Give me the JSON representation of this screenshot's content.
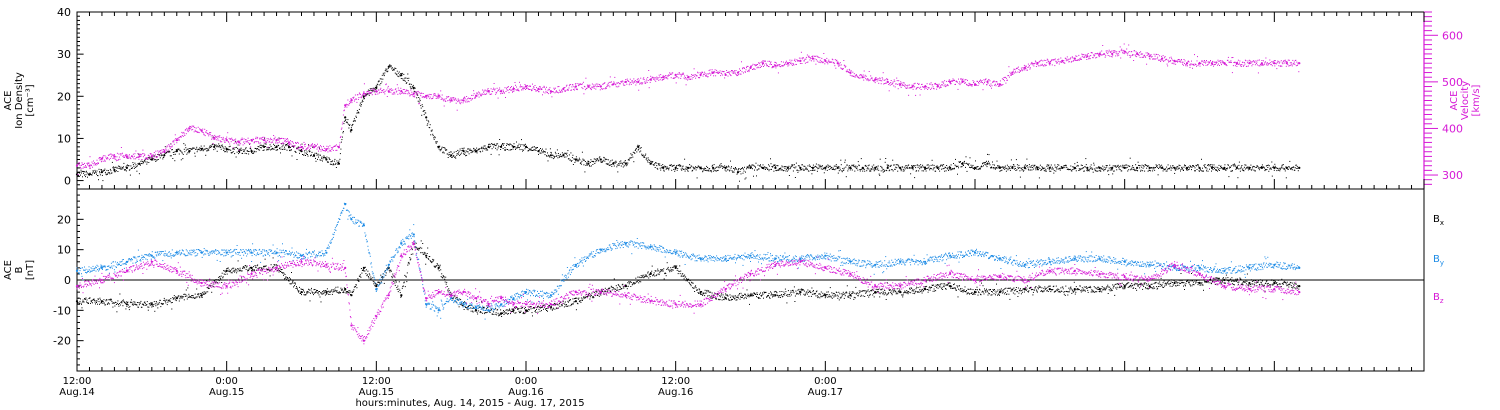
{
  "colors": {
    "black": "#000000",
    "magenta": "#d619d6",
    "blue": "#1e8ce6",
    "axis": "#000000"
  },
  "chart_data": [
    {
      "type": "scatter",
      "panel": "top",
      "ylabel_lines": [
        "ACE",
        "Ion Density",
        "[cm⁻³]"
      ],
      "y2label_lines": [
        "ACE",
        "Velocity",
        "[km/s]"
      ],
      "ylim": [
        -2,
        40
      ],
      "y2lim": [
        270,
        650
      ],
      "yticks": [
        "0",
        "10",
        "20",
        "30",
        "40"
      ],
      "y2ticks": [
        "300",
        "400",
        "500",
        "600"
      ],
      "series": [
        {
          "axis": "left",
          "color": "black",
          "x": [
            0,
            1,
            2,
            3,
            4,
            5,
            6,
            7,
            8,
            9,
            10,
            11,
            12,
            13,
            14,
            15,
            16,
            17,
            18,
            19,
            20,
            21,
            21.5,
            22,
            23,
            24,
            25,
            26,
            27,
            28,
            29,
            30,
            31,
            32,
            33,
            34,
            35,
            36,
            37,
            38,
            39,
            40,
            41,
            42,
            43,
            44,
            45,
            46,
            47,
            48,
            49,
            50,
            51,
            52,
            53,
            54,
            55,
            56,
            57,
            58,
            59,
            60,
            61,
            62,
            63,
            64,
            65,
            66,
            67,
            68,
            69,
            70,
            71,
            72,
            73,
            74,
            75,
            76,
            77,
            78,
            79,
            80,
            81,
            82,
            83,
            84,
            85,
            86,
            87,
            88,
            89,
            90,
            91,
            92,
            93,
            94,
            95,
            96,
            97,
            98
          ],
          "y": [
            1.5,
            1.5,
            2,
            2.5,
            3,
            4,
            5,
            6,
            7,
            7,
            7.5,
            8,
            7.5,
            7,
            7,
            8,
            8,
            8,
            7,
            6,
            5,
            4,
            15,
            12,
            20,
            22,
            27,
            25,
            22,
            15,
            8,
            6,
            7,
            7,
            8,
            8,
            8,
            8,
            7,
            6,
            6,
            5,
            4,
            5,
            4,
            4,
            8,
            4,
            3,
            3,
            3,
            3,
            3,
            3,
            2,
            3,
            3,
            3,
            3,
            3,
            3,
            3,
            3,
            3,
            3,
            3,
            3,
            3,
            3,
            3,
            3,
            3,
            4,
            3,
            4,
            3,
            3,
            3,
            3,
            3,
            3,
            3,
            3,
            3,
            3,
            3,
            3,
            3,
            3,
            3,
            3,
            3,
            3,
            3,
            3,
            3,
            3,
            3,
            3,
            3
          ]
        },
        {
          "axis": "right",
          "color": "magenta",
          "x": [
            0,
            1,
            2,
            3,
            4,
            5,
            6,
            7,
            8,
            9,
            10,
            11,
            12,
            13,
            14,
            15,
            16,
            17,
            18,
            19,
            20,
            21,
            21.5,
            22,
            23,
            24,
            25,
            26,
            27,
            28,
            29,
            30,
            31,
            32,
            33,
            34,
            35,
            36,
            37,
            38,
            39,
            40,
            41,
            42,
            43,
            44,
            45,
            46,
            47,
            48,
            49,
            50,
            51,
            52,
            53,
            54,
            55,
            56,
            57,
            58,
            59,
            60,
            61,
            62,
            63,
            64,
            65,
            66,
            67,
            68,
            69,
            70,
            71,
            72,
            73,
            74,
            75,
            76,
            77,
            78,
            79,
            80,
            81,
            82,
            83,
            84,
            85,
            86,
            87,
            88,
            89,
            90,
            91,
            92,
            93,
            94,
            95,
            96,
            97,
            98
          ],
          "y": [
            320,
            320,
            335,
            340,
            340,
            340,
            340,
            350,
            375,
            400,
            395,
            380,
            375,
            370,
            375,
            375,
            375,
            370,
            360,
            360,
            355,
            360,
            450,
            460,
            475,
            480,
            480,
            480,
            475,
            470,
            470,
            460,
            460,
            470,
            480,
            480,
            485,
            490,
            485,
            480,
            485,
            490,
            490,
            490,
            495,
            500,
            500,
            505,
            510,
            515,
            510,
            515,
            520,
            515,
            520,
            530,
            540,
            535,
            540,
            545,
            550,
            545,
            540,
            520,
            510,
            505,
            500,
            495,
            490,
            490,
            490,
            500,
            500,
            495,
            500,
            495,
            520,
            530,
            540,
            540,
            545,
            550,
            555,
            560,
            560,
            565,
            560,
            555,
            550,
            545,
            540,
            540,
            540,
            540,
            540,
            540,
            540,
            540,
            540,
            540
          ]
        }
      ]
    },
    {
      "type": "scatter",
      "panel": "bottom",
      "ylabel_lines": [
        "ACE",
        "B",
        "[nT]"
      ],
      "ylim": [
        -30,
        30
      ],
      "yticks": [
        "-20",
        "-10",
        "0",
        "10",
        "20"
      ],
      "legend": [
        {
          "text": "B",
          "sub": "x",
          "color": "black"
        },
        {
          "text": "B",
          "sub": "y",
          "color": "blue"
        },
        {
          "text": "B",
          "sub": "z",
          "color": "magenta"
        }
      ],
      "series": [
        {
          "name": "Bx",
          "color": "black",
          "x": [
            0,
            2,
            4,
            6,
            8,
            10,
            12,
            14,
            16,
            18,
            20,
            21.5,
            22,
            23,
            24,
            25,
            26,
            27,
            28,
            29,
            30,
            31,
            32,
            33,
            34,
            35,
            36,
            38,
            40,
            42,
            44,
            46,
            48,
            50,
            52,
            54,
            56,
            58,
            60,
            62,
            64,
            66,
            68,
            70,
            72,
            74,
            76,
            78,
            80,
            82,
            84,
            86,
            88,
            90,
            92,
            94,
            96,
            98
          ],
          "y": [
            -7,
            -7,
            -8,
            -8,
            -6,
            -5,
            3,
            4,
            4,
            -4,
            -4,
            -3,
            -5,
            4,
            -2,
            4,
            -5,
            12,
            8,
            4,
            -5,
            -8,
            -10,
            -10,
            -11,
            -10,
            -10,
            -9,
            -7,
            -4,
            -2,
            2,
            4,
            -4,
            -6,
            -5,
            -5,
            -4,
            -5,
            -5,
            -4,
            -4,
            -3,
            -2,
            -4,
            -4,
            -3,
            -3,
            -3,
            -3,
            -2,
            -2,
            -1,
            -1,
            0,
            -1,
            -1,
            -2
          ]
        },
        {
          "name": "By",
          "color": "blue",
          "x": [
            0,
            2,
            4,
            6,
            8,
            10,
            12,
            14,
            16,
            18,
            20,
            21.5,
            22,
            23,
            24,
            25,
            26,
            27,
            28,
            29,
            30,
            31,
            32,
            33,
            34,
            35,
            36,
            38,
            40,
            42,
            44,
            46,
            48,
            50,
            52,
            54,
            56,
            58,
            60,
            62,
            64,
            66,
            68,
            70,
            72,
            74,
            76,
            78,
            80,
            82,
            84,
            86,
            88,
            90,
            92,
            94,
            96,
            98
          ],
          "y": [
            3,
            4,
            6,
            8,
            9,
            9,
            9,
            9,
            9,
            8,
            9,
            25,
            20,
            18,
            -3,
            5,
            12,
            15,
            -8,
            -10,
            -6,
            -8,
            -9,
            -10,
            -8,
            -6,
            -4,
            -5,
            5,
            10,
            12,
            11,
            9,
            7,
            7,
            8,
            7,
            7,
            8,
            6,
            5,
            6,
            6,
            8,
            9,
            7,
            5,
            6,
            7,
            7,
            6,
            5,
            4,
            4,
            3,
            4,
            5,
            4
          ]
        },
        {
          "name": "Bz",
          "color": "magenta",
          "x": [
            0,
            2,
            4,
            6,
            8,
            10,
            12,
            14,
            16,
            18,
            20,
            21.5,
            22,
            23,
            24,
            25,
            26,
            27,
            28,
            29,
            30,
            31,
            32,
            33,
            34,
            35,
            36,
            38,
            40,
            42,
            44,
            46,
            48,
            50,
            52,
            54,
            56,
            58,
            60,
            62,
            64,
            66,
            68,
            70,
            72,
            74,
            76,
            78,
            80,
            82,
            84,
            86,
            88,
            90,
            92,
            94,
            96,
            98
          ],
          "y": [
            -2,
            0,
            3,
            6,
            3,
            -1,
            -2,
            2,
            4,
            6,
            5,
            4,
            -15,
            -20,
            -12,
            -5,
            8,
            12,
            -6,
            -4,
            -5,
            -4,
            -6,
            -8,
            -6,
            -8,
            -8,
            -8,
            -4,
            -4,
            -5,
            -7,
            -8,
            -8,
            -3,
            2,
            5,
            6,
            4,
            2,
            -2,
            -2,
            0,
            2,
            0,
            1,
            0,
            3,
            3,
            2,
            1,
            0,
            5,
            2,
            -2,
            -3,
            -3,
            -4
          ]
        }
      ]
    }
  ],
  "x_axis": {
    "range_hours": [
      0,
      108
    ],
    "ticks": [
      {
        "h": 0,
        "line1": "12:00",
        "line2": "Aug.14"
      },
      {
        "h": 12,
        "line1": "0:00",
        "line2": "Aug.15"
      },
      {
        "h": 24,
        "line1": "12:00",
        "line2": "Aug.15"
      },
      {
        "h": 36,
        "line1": "0:00",
        "line2": "Aug.16"
      },
      {
        "h": 48,
        "line1": "12:00",
        "line2": "Aug.16"
      },
      {
        "h": 60,
        "line1": "0:00",
        "line2": "Aug.17"
      }
    ],
    "title": "hours:minutes, Aug. 14, 2015 - Aug. 17, 2015",
    "data_end_hour": 98
  }
}
